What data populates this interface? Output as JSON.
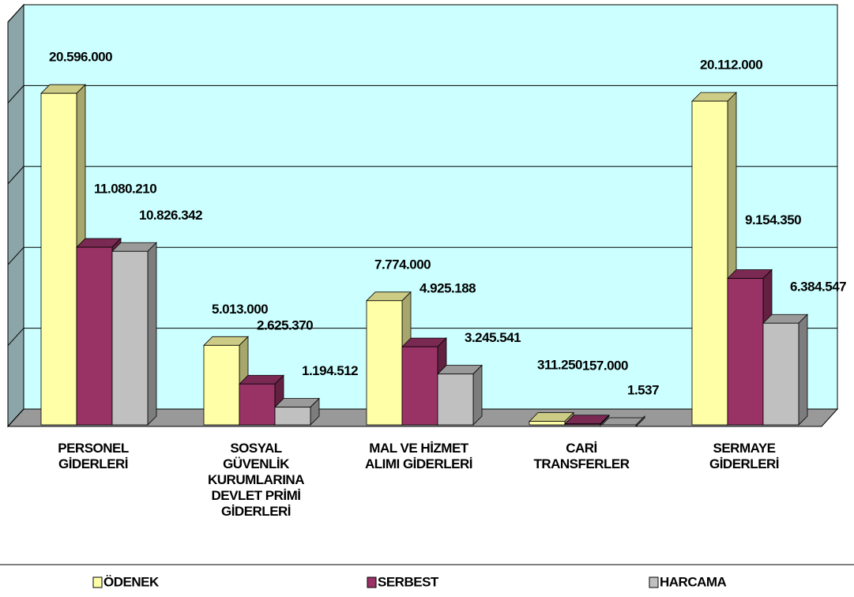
{
  "chart_data": {
    "type": "bar3d",
    "categories": [
      "PERSONEL\nGİDERLERİ",
      "SOSYAL\nGÜVENLİK\nKURUMLARINA\nDEVLET PRİMİ\nGİDERLERİ",
      "MAL VE HİZMET\nALIMI GİDERLERİ",
      "CARİ\nTRANSFERLER",
      "SERMAYE\nGİDERLERİ"
    ],
    "series": [
      {
        "name": "ÖDENEK",
        "color": "#ffffa8",
        "values": [
          20596000,
          5013000,
          7774000,
          311250,
          20112000
        ],
        "value_labels": [
          "20.596.000",
          "5.013.000",
          "7.774.000",
          "311.250",
          "20.112.000"
        ]
      },
      {
        "name": "SERBEST",
        "color": "#993366",
        "values": [
          11080210,
          2625370,
          4925188,
          157000,
          9154350
        ],
        "value_labels": [
          "11.080.210",
          "2.625.370",
          "4.925.188",
          "157.000",
          "9.154.350"
        ]
      },
      {
        "name": "HARCAMA",
        "color": "#c0c0c0",
        "values": [
          10826342,
          1194512,
          3245541,
          1537,
          6384547
        ],
        "value_labels": [
          "10.826.342",
          "1.194.512",
          "3.245.541",
          "1.537",
          "6.384.547"
        ]
      }
    ],
    "ylim": [
      0,
      25000000
    ],
    "yticks": [
      0,
      5000000,
      10000000,
      15000000,
      20000000,
      25000000
    ],
    "grid": true,
    "legend": "bottom"
  }
}
